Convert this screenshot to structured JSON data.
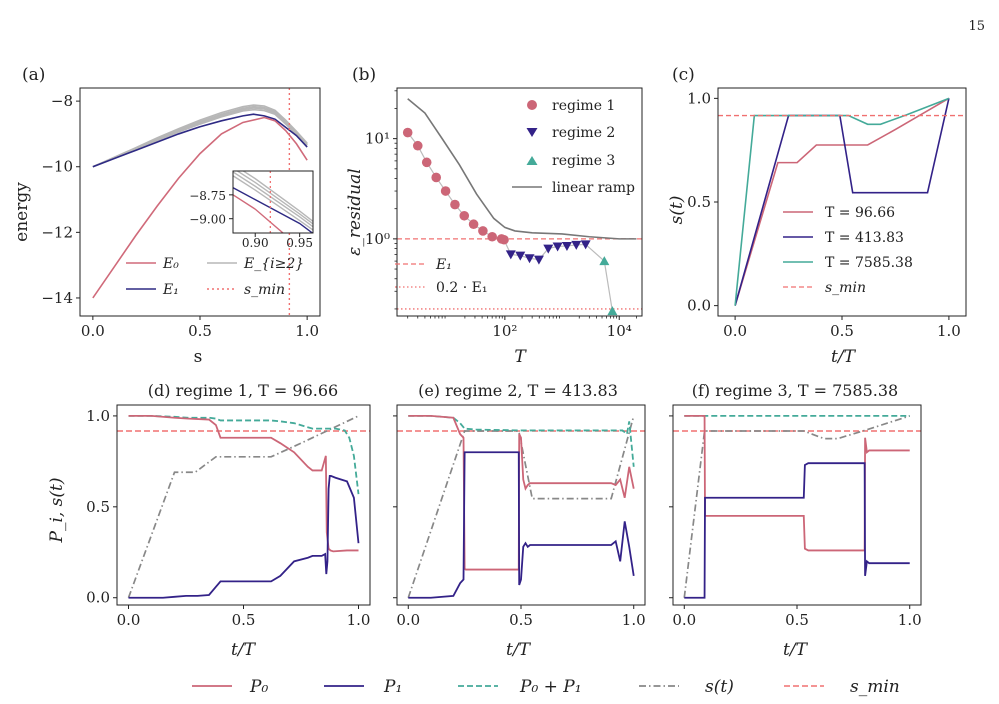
{
  "page_number": "15",
  "colors": {
    "E0": "#d06a7a",
    "E1": "#2e2a84",
    "Ehigh": "#b7b7b7",
    "smin": "#f07070",
    "regime1": "#cc6677",
    "regime2": "#332288",
    "regime3": "#44aa99",
    "linear": "#777777",
    "P0": "#cc6677",
    "P1": "#332288",
    "P0P1": "#44aa99",
    "st": "#888888"
  },
  "legend_bottom": {
    "P0": "P₀",
    "P1": "P₁",
    "P0P1": "P₀ + P₁",
    "st": "s(t)",
    "smin": "s_min"
  },
  "chart_data": [
    {
      "id": "a",
      "panel_label": "(a)",
      "type": "line",
      "xlabel": "s",
      "ylabel": "energy",
      "xlim": [
        -0.06,
        1.06
      ],
      "ylim": [
        -14.55,
        -7.6
      ],
      "xticks": [
        "0.0",
        "0.5",
        "1.0"
      ],
      "xtick_values": [
        0,
        0.5,
        1
      ],
      "yticks": [
        "−14",
        "−12",
        "−10",
        "−8"
      ],
      "ytick_values": [
        -14,
        -12,
        -10,
        -8
      ],
      "smin": 0.917,
      "series": [
        {
          "name": "E₀",
          "x": [
            0,
            0.1,
            0.2,
            0.3,
            0.4,
            0.5,
            0.6,
            0.7,
            0.8,
            0.85,
            0.9,
            0.95,
            1.0
          ],
          "y": [
            -14.0,
            -13.05,
            -12.1,
            -11.2,
            -10.35,
            -9.6,
            -9.0,
            -8.65,
            -8.5,
            -8.6,
            -8.9,
            -9.3,
            -9.8
          ]
        },
        {
          "name": "E₁",
          "x": [
            0,
            0.1,
            0.2,
            0.3,
            0.4,
            0.5,
            0.6,
            0.7,
            0.75,
            0.8,
            0.85,
            0.9,
            0.95,
            1.0
          ],
          "y": [
            -10.0,
            -9.75,
            -9.5,
            -9.25,
            -9.0,
            -8.78,
            -8.6,
            -8.45,
            -8.4,
            -8.45,
            -8.55,
            -8.8,
            -9.05,
            -9.4
          ]
        },
        {
          "name": "E_{i≥2}",
          "x": [
            0,
            0.1,
            0.2,
            0.3,
            0.4,
            0.5,
            0.6,
            0.7,
            0.75,
            0.8,
            0.85,
            0.9,
            0.95,
            1.0
          ],
          "y": [
            -10.0,
            -9.72,
            -9.44,
            -9.15,
            -8.88,
            -8.62,
            -8.4,
            -8.22,
            -8.17,
            -8.2,
            -8.32,
            -8.62,
            -8.95,
            -9.3
          ]
        },
        {
          "name": "",
          "x": [
            0,
            0.1,
            0.2,
            0.3,
            0.4,
            0.5,
            0.6,
            0.7,
            0.75,
            0.8,
            0.85,
            0.9,
            0.95,
            1.0
          ],
          "y": [
            -10.0,
            -9.74,
            -9.47,
            -9.2,
            -8.94,
            -8.7,
            -8.48,
            -8.3,
            -8.26,
            -8.29,
            -8.4,
            -8.7,
            -9.02,
            -9.35
          ]
        },
        {
          "name": "",
          "x": [
            0,
            0.1,
            0.2,
            0.3,
            0.4,
            0.5,
            0.6,
            0.7,
            0.75,
            0.8,
            0.85,
            0.9,
            0.95,
            1.0
          ],
          "y": [
            -10.0,
            -9.73,
            -9.46,
            -9.18,
            -8.91,
            -8.66,
            -8.44,
            -8.26,
            -8.21,
            -8.24,
            -8.36,
            -8.66,
            -8.98,
            -9.33
          ]
        },
        {
          "name": "",
          "x": [
            0,
            0.1,
            0.2,
            0.3,
            0.4,
            0.5,
            0.6,
            0.7,
            0.75,
            0.8,
            0.85,
            0.9,
            0.95,
            1.0
          ],
          "y": [
            -10.0,
            -9.71,
            -9.42,
            -9.12,
            -8.84,
            -8.58,
            -8.35,
            -8.17,
            -8.12,
            -8.15,
            -8.28,
            -8.58,
            -8.92,
            -9.28
          ]
        }
      ],
      "legend": {
        "E0": "E₀",
        "E1": "E₁",
        "Ehigh": "E_{i≥2}",
        "smin": "s_min"
      },
      "inset": {
        "xlim": [
          0.875,
          0.965
        ],
        "ylim": [
          -9.15,
          -8.5
        ],
        "xticks": [
          "0.90",
          "0.95"
        ],
        "xtick_values": [
          0.9,
          0.95
        ],
        "yticks": [
          "−8.75",
          "−9.00"
        ],
        "ytick_values": [
          -8.75,
          -9.0
        ]
      }
    },
    {
      "id": "b",
      "panel_label": "(b)",
      "type": "scatter",
      "xscale": "log",
      "yscale": "log",
      "xlabel": "T",
      "ylabel": "ε_residual",
      "xlim": [
        1.3,
        25000
      ],
      "ylim": [
        0.17,
        32
      ],
      "xticks": [
        "10²",
        "10⁴"
      ],
      "xtick_values": [
        100,
        10000
      ],
      "yticks": [
        "10⁰",
        "10¹"
      ],
      "ytick_values": [
        1,
        10
      ],
      "E1_level": 1.0,
      "fraction_level": 0.2,
      "series": [
        {
          "name": "regime 1",
          "x": [
            2,
            3,
            4.3,
            6.3,
            9.2,
            13.4,
            19.5,
            28.4,
            41.3,
            60,
            87.5,
            96.66
          ],
          "y": [
            11.5,
            8.5,
            5.8,
            4.1,
            3.0,
            2.2,
            1.7,
            1.4,
            1.2,
            1.05,
            1.0,
            0.98
          ]
        },
        {
          "name": "regime 2",
          "x": [
            127,
            186,
            270,
            394,
            574,
            836,
            1218,
            1774,
            2584
          ],
          "y": [
            0.7,
            0.68,
            0.64,
            0.62,
            0.8,
            0.84,
            0.85,
            0.87,
            0.88
          ]
        },
        {
          "name": "regime 3",
          "x": [
            5486,
            7585.38
          ],
          "y": [
            0.6,
            0.19
          ]
        },
        {
          "name": "linear ramp",
          "x": [
            2,
            4,
            8,
            16,
            32,
            64,
            100,
            150,
            300,
            1000,
            3000,
            10000,
            20000
          ],
          "y": [
            25,
            18,
            10,
            5.5,
            2.8,
            1.6,
            1.3,
            1.2,
            1.15,
            1.12,
            1.05,
            1.0,
            1.0
          ]
        }
      ],
      "legend": {
        "regime1": "regime 1",
        "regime2": "regime 2",
        "regime3": "regime 3",
        "linear": "linear ramp",
        "E1": "E₁",
        "frac": "0.2 · E₁"
      }
    },
    {
      "id": "c",
      "panel_label": "(c)",
      "type": "line",
      "xlabel": "t/T",
      "ylabel": "s(t)",
      "xlim": [
        -0.08,
        1.08
      ],
      "ylim": [
        -0.05,
        1.05
      ],
      "xticks": [
        "0.0",
        "0.5",
        "1.0"
      ],
      "xtick_values": [
        0,
        0.5,
        1
      ],
      "yticks": [
        "0.0",
        "0.5",
        "1.0"
      ],
      "ytick_values": [
        0,
        0.5,
        1
      ],
      "smin": 0.917,
      "series": [
        {
          "name": "T = 96.66",
          "x": [
            0,
            0.2,
            0.29,
            0.38,
            0.62,
            0.75,
            1.0
          ],
          "y": [
            0,
            0.69,
            0.69,
            0.775,
            0.775,
            0.85,
            1.0
          ]
        },
        {
          "name": "T = 413.83",
          "x": [
            0,
            0.25,
            0.49,
            0.55,
            0.9,
            1.0
          ],
          "y": [
            0,
            0.917,
            0.917,
            0.545,
            0.545,
            1.0
          ]
        },
        {
          "name": "T = 7585.38",
          "x": [
            0,
            0.09,
            0.53,
            0.62,
            0.68,
            0.8,
            1.0
          ],
          "y": [
            0,
            0.917,
            0.917,
            0.875,
            0.875,
            0.92,
            1.0
          ]
        }
      ],
      "legend": {
        "t1": "T = 96.66",
        "t2": "T = 413.83",
        "t3": "T = 7585.38",
        "smin": "s_min"
      }
    },
    {
      "id": "d",
      "title": "(d) regime 1, T = 96.66",
      "type": "line",
      "xlabel": "t/T",
      "ylabel": "P_i, s(t)",
      "xlim": [
        -0.05,
        1.05
      ],
      "ylim": [
        -0.04,
        1.06
      ],
      "xticks": [
        "0.0",
        "0.5",
        "1.0"
      ],
      "xtick_values": [
        0,
        0.5,
        1
      ],
      "yticks": [
        "0.0",
        "0.5",
        "1.0"
      ],
      "ytick_values": [
        0,
        0.5,
        1
      ],
      "smin": 0.917,
      "series": [
        {
          "name": "P₀",
          "x": [
            0,
            0.1,
            0.2,
            0.26,
            0.35,
            0.38,
            0.4,
            0.62,
            0.66,
            0.72,
            0.78,
            0.8,
            0.84,
            0.858,
            0.862,
            0.87,
            0.878,
            0.89,
            0.95,
            1.0
          ],
          "y": [
            1.0,
            1.0,
            0.99,
            0.985,
            0.98,
            0.95,
            0.88,
            0.88,
            0.85,
            0.8,
            0.72,
            0.7,
            0.7,
            0.78,
            0.36,
            0.27,
            0.26,
            0.255,
            0.26,
            0.26
          ]
        },
        {
          "name": "P₁",
          "x": [
            0,
            0.15,
            0.2,
            0.25,
            0.3,
            0.35,
            0.38,
            0.4,
            0.62,
            0.66,
            0.72,
            0.78,
            0.8,
            0.84,
            0.855,
            0.86,
            0.865,
            0.87,
            0.875,
            0.88,
            0.9,
            0.95,
            0.98,
            1.0
          ],
          "y": [
            0,
            0,
            0.005,
            0.01,
            0.01,
            0.015,
            0.06,
            0.09,
            0.09,
            0.12,
            0.2,
            0.22,
            0.23,
            0.23,
            0.24,
            0.13,
            0.2,
            0.6,
            0.67,
            0.67,
            0.66,
            0.64,
            0.55,
            0.3
          ]
        },
        {
          "name": "P₀ + P₁",
          "x": [
            0,
            0.1,
            0.2,
            0.26,
            0.35,
            0.38,
            0.4,
            0.62,
            0.66,
            0.72,
            0.8,
            0.84,
            0.88,
            0.9,
            0.94,
            0.96,
            0.98,
            1.0
          ],
          "y": [
            1.0,
            1.0,
            0.995,
            0.99,
            0.99,
            0.985,
            0.975,
            0.975,
            0.97,
            0.96,
            0.93,
            0.93,
            0.93,
            0.93,
            0.92,
            0.88,
            0.78,
            0.57
          ]
        },
        {
          "name": "s(t)",
          "x": [
            0,
            0.2,
            0.29,
            0.38,
            0.62,
            0.75,
            1.0
          ],
          "y": [
            0,
            0.69,
            0.69,
            0.775,
            0.775,
            0.85,
            1.0
          ]
        }
      ]
    },
    {
      "id": "e",
      "title": "(e) regime 2, T = 413.83",
      "type": "line",
      "xlabel": "t/T",
      "xlim": [
        -0.05,
        1.05
      ],
      "ylim": [
        -0.04,
        1.06
      ],
      "xticks": [
        "0.0",
        "0.5",
        "1.0"
      ],
      "xtick_values": [
        0,
        0.5,
        1
      ],
      "smin": 0.917,
      "series": [
        {
          "name": "P₀",
          "x": [
            0,
            0.1,
            0.2,
            0.23,
            0.245,
            0.25,
            0.255,
            0.26,
            0.49,
            0.492,
            0.5,
            0.51,
            0.52,
            0.53,
            0.54,
            0.56,
            0.9,
            0.92,
            0.94,
            0.96,
            0.98,
            1.0
          ],
          "y": [
            1.0,
            1.0,
            0.99,
            0.9,
            0.88,
            0.16,
            0.155,
            0.155,
            0.155,
            0.9,
            0.88,
            0.65,
            0.6,
            0.62,
            0.63,
            0.63,
            0.63,
            0.62,
            0.65,
            0.55,
            0.72,
            0.6
          ]
        },
        {
          "name": "P₁",
          "x": [
            0,
            0.1,
            0.2,
            0.23,
            0.245,
            0.25,
            0.255,
            0.26,
            0.49,
            0.492,
            0.5,
            0.51,
            0.52,
            0.53,
            0.54,
            0.56,
            0.9,
            0.92,
            0.94,
            0.96,
            0.98,
            1.0
          ],
          "y": [
            0,
            0,
            0.01,
            0.08,
            0.1,
            0.8,
            0.8,
            0.8,
            0.8,
            0.07,
            0.1,
            0.28,
            0.3,
            0.28,
            0.29,
            0.29,
            0.29,
            0.31,
            0.2,
            0.42,
            0.28,
            0.12
          ]
        },
        {
          "name": "P₀ + P₁",
          "x": [
            0,
            0.1,
            0.2,
            0.23,
            0.25,
            0.3,
            0.5,
            0.6,
            0.8,
            0.9,
            0.95,
            0.97,
            0.98,
            1.0
          ],
          "y": [
            1.0,
            1.0,
            0.99,
            0.96,
            0.93,
            0.925,
            0.92,
            0.92,
            0.92,
            0.92,
            0.92,
            0.9,
            0.97,
            0.72
          ]
        },
        {
          "name": "s(t)",
          "x": [
            0,
            0.25,
            0.49,
            0.55,
            0.9,
            1.0
          ],
          "y": [
            0,
            0.917,
            0.917,
            0.545,
            0.545,
            1.0
          ]
        }
      ]
    },
    {
      "id": "f",
      "title": "(f) regime 3, T = 7585.38",
      "type": "line",
      "xlabel": "t/T",
      "xlim": [
        -0.05,
        1.05
      ],
      "ylim": [
        -0.04,
        1.06
      ],
      "xticks": [
        "0.0",
        "0.5",
        "1.0"
      ],
      "xtick_values": [
        0,
        0.5,
        1
      ],
      "smin": 0.917,
      "series": [
        {
          "name": "P₀",
          "x": [
            0,
            0.09,
            0.092,
            0.1,
            0.53,
            0.535,
            0.55,
            0.8,
            0.802,
            0.81,
            0.82,
            1.0
          ],
          "y": [
            1.0,
            1.0,
            0.45,
            0.45,
            0.45,
            0.27,
            0.26,
            0.26,
            0.88,
            0.8,
            0.81,
            0.81
          ]
        },
        {
          "name": "P₁",
          "x": [
            0,
            0.09,
            0.092,
            0.1,
            0.53,
            0.535,
            0.55,
            0.8,
            0.802,
            0.81,
            0.82,
            1.0
          ],
          "y": [
            0,
            0,
            0.55,
            0.55,
            0.55,
            0.73,
            0.74,
            0.74,
            0.12,
            0.2,
            0.19,
            0.19
          ]
        },
        {
          "name": "P₀ + P₁",
          "x": [
            0,
            0.09,
            0.1,
            0.5,
            0.9,
            1.0
          ],
          "y": [
            1.0,
            1.0,
            1.0,
            1.0,
            1.0,
            1.0
          ]
        },
        {
          "name": "s(t)",
          "x": [
            0,
            0.09,
            0.53,
            0.62,
            0.68,
            0.8,
            1.0
          ],
          "y": [
            0,
            0.917,
            0.917,
            0.875,
            0.875,
            0.92,
            1.0
          ]
        }
      ]
    }
  ]
}
